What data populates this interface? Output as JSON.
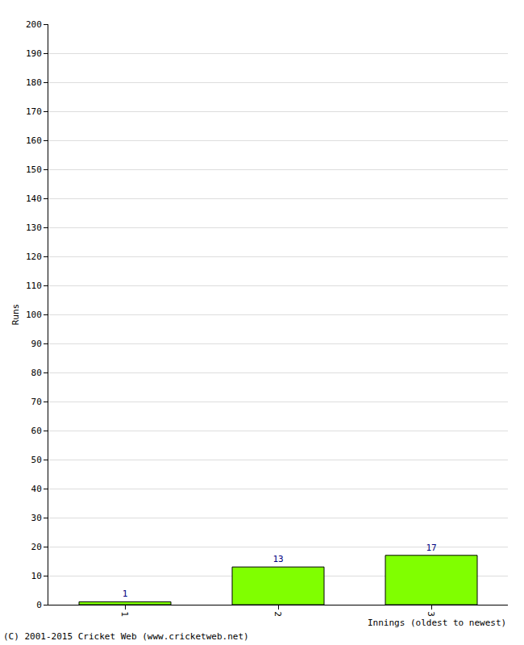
{
  "chart_data": {
    "type": "bar",
    "x_label": "Innings (oldest to newest)",
    "y_label": "Runs",
    "annotations": [
      "(C) 2001-2015 Cricket Web (www.cricketweb.net)"
    ],
    "categories": [
      "1",
      "2",
      "3"
    ],
    "values": [
      1,
      13,
      17
    ],
    "color": "#80ff00",
    "ylim": [
      0,
      200
    ],
    "yticks": [
      0,
      10,
      20,
      30,
      40,
      50,
      60,
      70,
      80,
      90,
      100,
      110,
      120,
      130,
      140,
      150,
      160,
      170,
      180,
      190,
      200
    ],
    "grid": true,
    "data_labels": true
  }
}
